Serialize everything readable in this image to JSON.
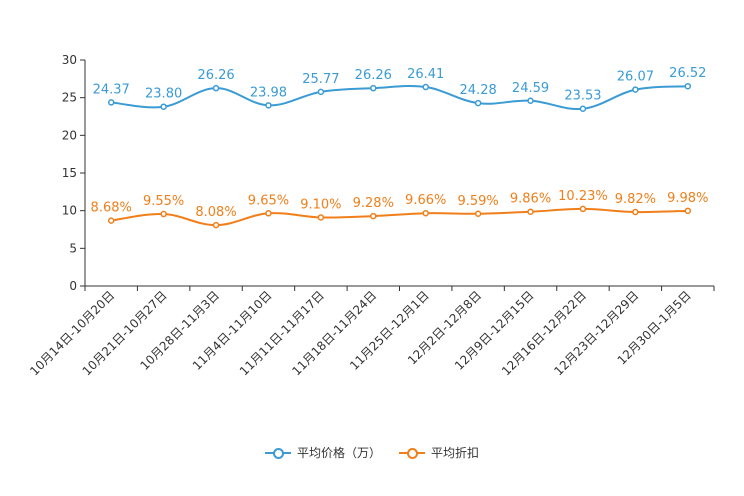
{
  "chart_data": {
    "type": "line",
    "title": "",
    "xlabel": "",
    "ylabel": "",
    "ylim": [
      0,
      30
    ],
    "yticks": [
      0,
      5,
      10,
      15,
      20,
      25,
      30
    ],
    "categories": [
      "10月14日-10月20日",
      "10月21日-10月27日",
      "10月28日-11月3日",
      "11月4日-11月10日",
      "11月11日-11月17日",
      "11月18日-11月24日",
      "11月25日-12月1日",
      "12月2日-12月8日",
      "12月9日-12月15日",
      "12月16日-12月22日",
      "12月23日-12月29日",
      "12月30日-1月5日"
    ],
    "series": [
      {
        "name": "平均价格（万）",
        "color": "#3a9bd5",
        "values": [
          24.37,
          23.8,
          26.26,
          23.98,
          25.77,
          26.26,
          26.41,
          24.28,
          24.59,
          23.53,
          26.07,
          26.52
        ],
        "labels": [
          "24.37",
          "23.80",
          "26.26",
          "23.98",
          "25.77",
          "26.26",
          "26.41",
          "24.28",
          "24.59",
          "23.53",
          "26.07",
          "26.52"
        ]
      },
      {
        "name": "平均折扣",
        "color": "#f07f1b",
        "values": [
          8.68,
          9.55,
          8.08,
          9.65,
          9.1,
          9.28,
          9.66,
          9.59,
          9.86,
          10.23,
          9.82,
          9.98
        ],
        "labels": [
          "8.68%",
          "9.55%",
          "8.08%",
          "9.65%",
          "9.10%",
          "9.28%",
          "9.66%",
          "9.59%",
          "9.86%",
          "10.23%",
          "9.82%",
          "9.98%"
        ]
      }
    ],
    "legend": "bottom"
  }
}
